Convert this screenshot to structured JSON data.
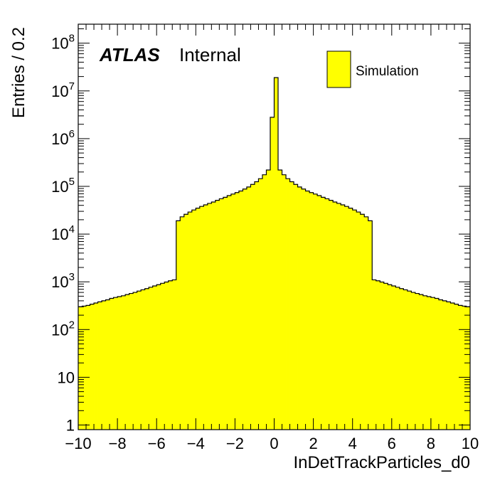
{
  "chart_data": {
    "type": "histogram",
    "xlabel": "InDetTrackParticles_d0",
    "ylabel": "Entries / 0.2",
    "label_atlas": "ATLAS",
    "label_status": "Internal",
    "legend": [
      {
        "name": "Simulation",
        "color": "#ffff00"
      }
    ],
    "legend_position": "top-right",
    "xlim": [
      -10,
      10
    ],
    "ylim": [
      0.8,
      250000000
    ],
    "yscale": "log",
    "bin_width": 0.2,
    "fill_color": "#ffff00",
    "line_color": "#000000",
    "x_ticks": [
      {
        "value": -10,
        "label": "−10"
      },
      {
        "value": -8,
        "label": "−8"
      },
      {
        "value": -6,
        "label": "−6"
      },
      {
        "value": -4,
        "label": "−4"
      },
      {
        "value": -2,
        "label": "−2"
      },
      {
        "value": 0,
        "label": "0"
      },
      {
        "value": 2,
        "label": "2"
      },
      {
        "value": 4,
        "label": "4"
      },
      {
        "value": 6,
        "label": "6"
      },
      {
        "value": 8,
        "label": "8"
      },
      {
        "value": 10,
        "label": "10"
      }
    ],
    "y_ticks": [
      {
        "value": 1,
        "base": "1",
        "exp": ""
      },
      {
        "value": 10,
        "base": "10",
        "exp": ""
      },
      {
        "value": 100,
        "base": "10",
        "exp": "2"
      },
      {
        "value": 1000,
        "base": "10",
        "exp": "3"
      },
      {
        "value": 10000,
        "base": "10",
        "exp": "4"
      },
      {
        "value": 100000,
        "base": "10",
        "exp": "5"
      },
      {
        "value": 1000000,
        "base": "10",
        "exp": "6"
      },
      {
        "value": 10000000,
        "base": "10",
        "exp": "7"
      },
      {
        "value": 100000000,
        "base": "10",
        "exp": "8"
      }
    ],
    "values": [
      300,
      310,
      320,
      340,
      360,
      380,
      400,
      420,
      450,
      470,
      490,
      510,
      540,
      570,
      600,
      640,
      680,
      720,
      770,
      820,
      870,
      930,
      990,
      1050,
      1100,
      19000,
      23000,
      26000,
      29000,
      32000,
      35000,
      38000,
      41000,
      44000,
      47000,
      51000,
      55000,
      59000,
      64000,
      69000,
      74000,
      80000,
      88000,
      97000,
      110000,
      125000,
      145000,
      175000,
      220000,
      2800000,
      19000000,
      220000,
      175000,
      145000,
      125000,
      110000,
      97000,
      88000,
      80000,
      74000,
      69000,
      64000,
      59000,
      55000,
      51000,
      47000,
      44000,
      41000,
      38000,
      35000,
      32000,
      29000,
      26000,
      23000,
      19000,
      1100,
      1050,
      990,
      930,
      870,
      820,
      770,
      720,
      680,
      640,
      600,
      570,
      540,
      510,
      490,
      470,
      450,
      420,
      400,
      380,
      360,
      340,
      320,
      310,
      300
    ]
  }
}
